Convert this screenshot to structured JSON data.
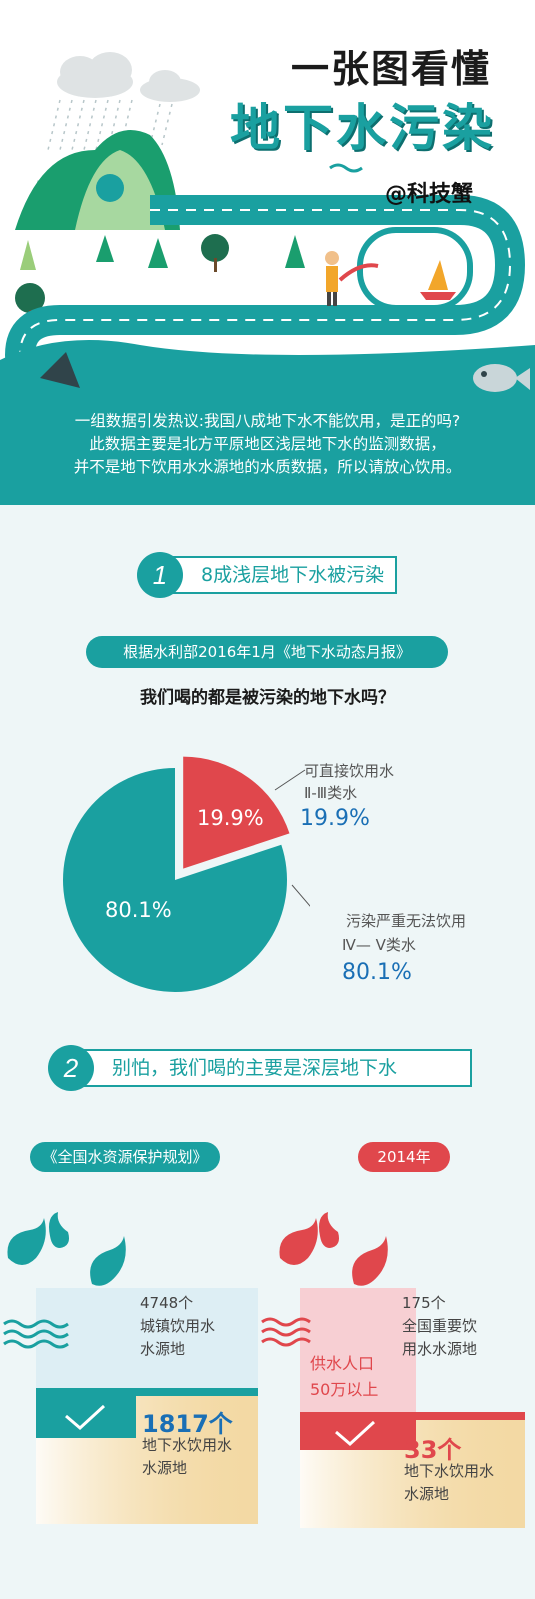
{
  "header": {
    "title_line1": "一张图看懂",
    "title_line2": "地下水污染",
    "author": "@科技蟹",
    "intro": [
      "一组数据引发热议:我国八成地下水不能饮用，是正的吗?",
      "此数据主要是北方平原地区浅层地下水的监测数据，",
      "并不是地下饮用水水源地的水质数据，所以请放心饮用。"
    ]
  },
  "section1": {
    "number": "1",
    "title": "8成浅层地下水被污染",
    "source": "根据水利部2016年1月《地下水动态月报》",
    "question": "我们喝的都是被污染的地下水吗？",
    "pie": {
      "small_value_label": "19.9%",
      "large_value_label": "80.1%",
      "legend_small_line1": "可直接饮用水",
      "legend_small_line2": "Ⅱ-Ⅲ类水",
      "legend_small_pct": "19.9%",
      "legend_large_line1": "污染严重无法饮用",
      "legend_large_line2": "Ⅳ— Ⅴ类水",
      "legend_large_pct": "80.1%",
      "colors": {
        "small": "#e0474c",
        "large": "#1aa0a0"
      }
    }
  },
  "section2": {
    "number": "2",
    "title": "别怕，我们喝的主要是深层地下水",
    "left_tag": "《全国水资源保护规划》",
    "right_tag": "2014年",
    "left": {
      "total_line1": "4748个",
      "total_line2": "城镇饮用水",
      "total_line3": "水源地",
      "count": "1817个",
      "count_line1": "地下水饮用水",
      "count_line2": "水源地"
    },
    "right": {
      "total_line1": "175个",
      "total_line2": "全国重要饮",
      "total_line3": "用水水源地",
      "inner_line1": "供水人口",
      "inner_line2": "50万以上",
      "count": "33个",
      "count_line1": "地下水饮用水",
      "count_line2": "水源地"
    },
    "colors": {
      "teal": "#1aa0a0",
      "red": "#e0474c",
      "gold": "#f3d9a4"
    }
  }
}
